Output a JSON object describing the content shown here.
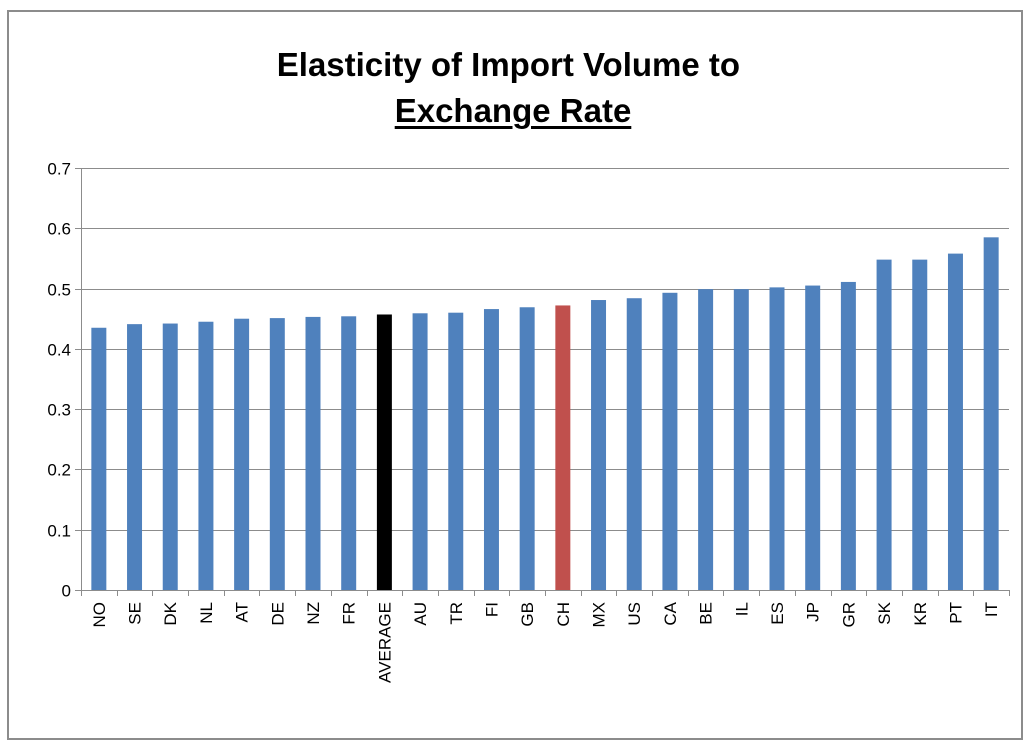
{
  "chart_data": {
    "type": "bar",
    "title": "Elasticity of Import Volume to Exchange Rate",
    "title_parts": {
      "lead": "Elasticity of Import Volume to ",
      "underlined": "Exchange Rate"
    },
    "xlabel": "",
    "ylabel": "",
    "ylim": [
      0,
      0.7
    ],
    "yticks": [
      "0",
      "0.1",
      "0.2",
      "0.3",
      "0.4",
      "0.5",
      "0.6",
      "0.7"
    ],
    "grid": true,
    "legend": "none",
    "categories": [
      "NO",
      "SE",
      "DK",
      "NL",
      "AT",
      "DE",
      "NZ",
      "FR",
      "AVERAGE",
      "AU",
      "TR",
      "FI",
      "GB",
      "CH",
      "MX",
      "US",
      "CA",
      "BE",
      "IL",
      "ES",
      "JP",
      "GR",
      "SK",
      "KR",
      "PT",
      "IT"
    ],
    "values": [
      0.435,
      0.441,
      0.442,
      0.445,
      0.45,
      0.451,
      0.453,
      0.454,
      0.457,
      0.459,
      0.46,
      0.466,
      0.469,
      0.472,
      0.481,
      0.484,
      0.493,
      0.499,
      0.499,
      0.502,
      0.505,
      0.511,
      0.548,
      0.548,
      0.558,
      0.585
    ],
    "colors": {
      "default": "#4f81bd",
      "AVERAGE": "#000000",
      "CH": "#c0504d"
    }
  }
}
